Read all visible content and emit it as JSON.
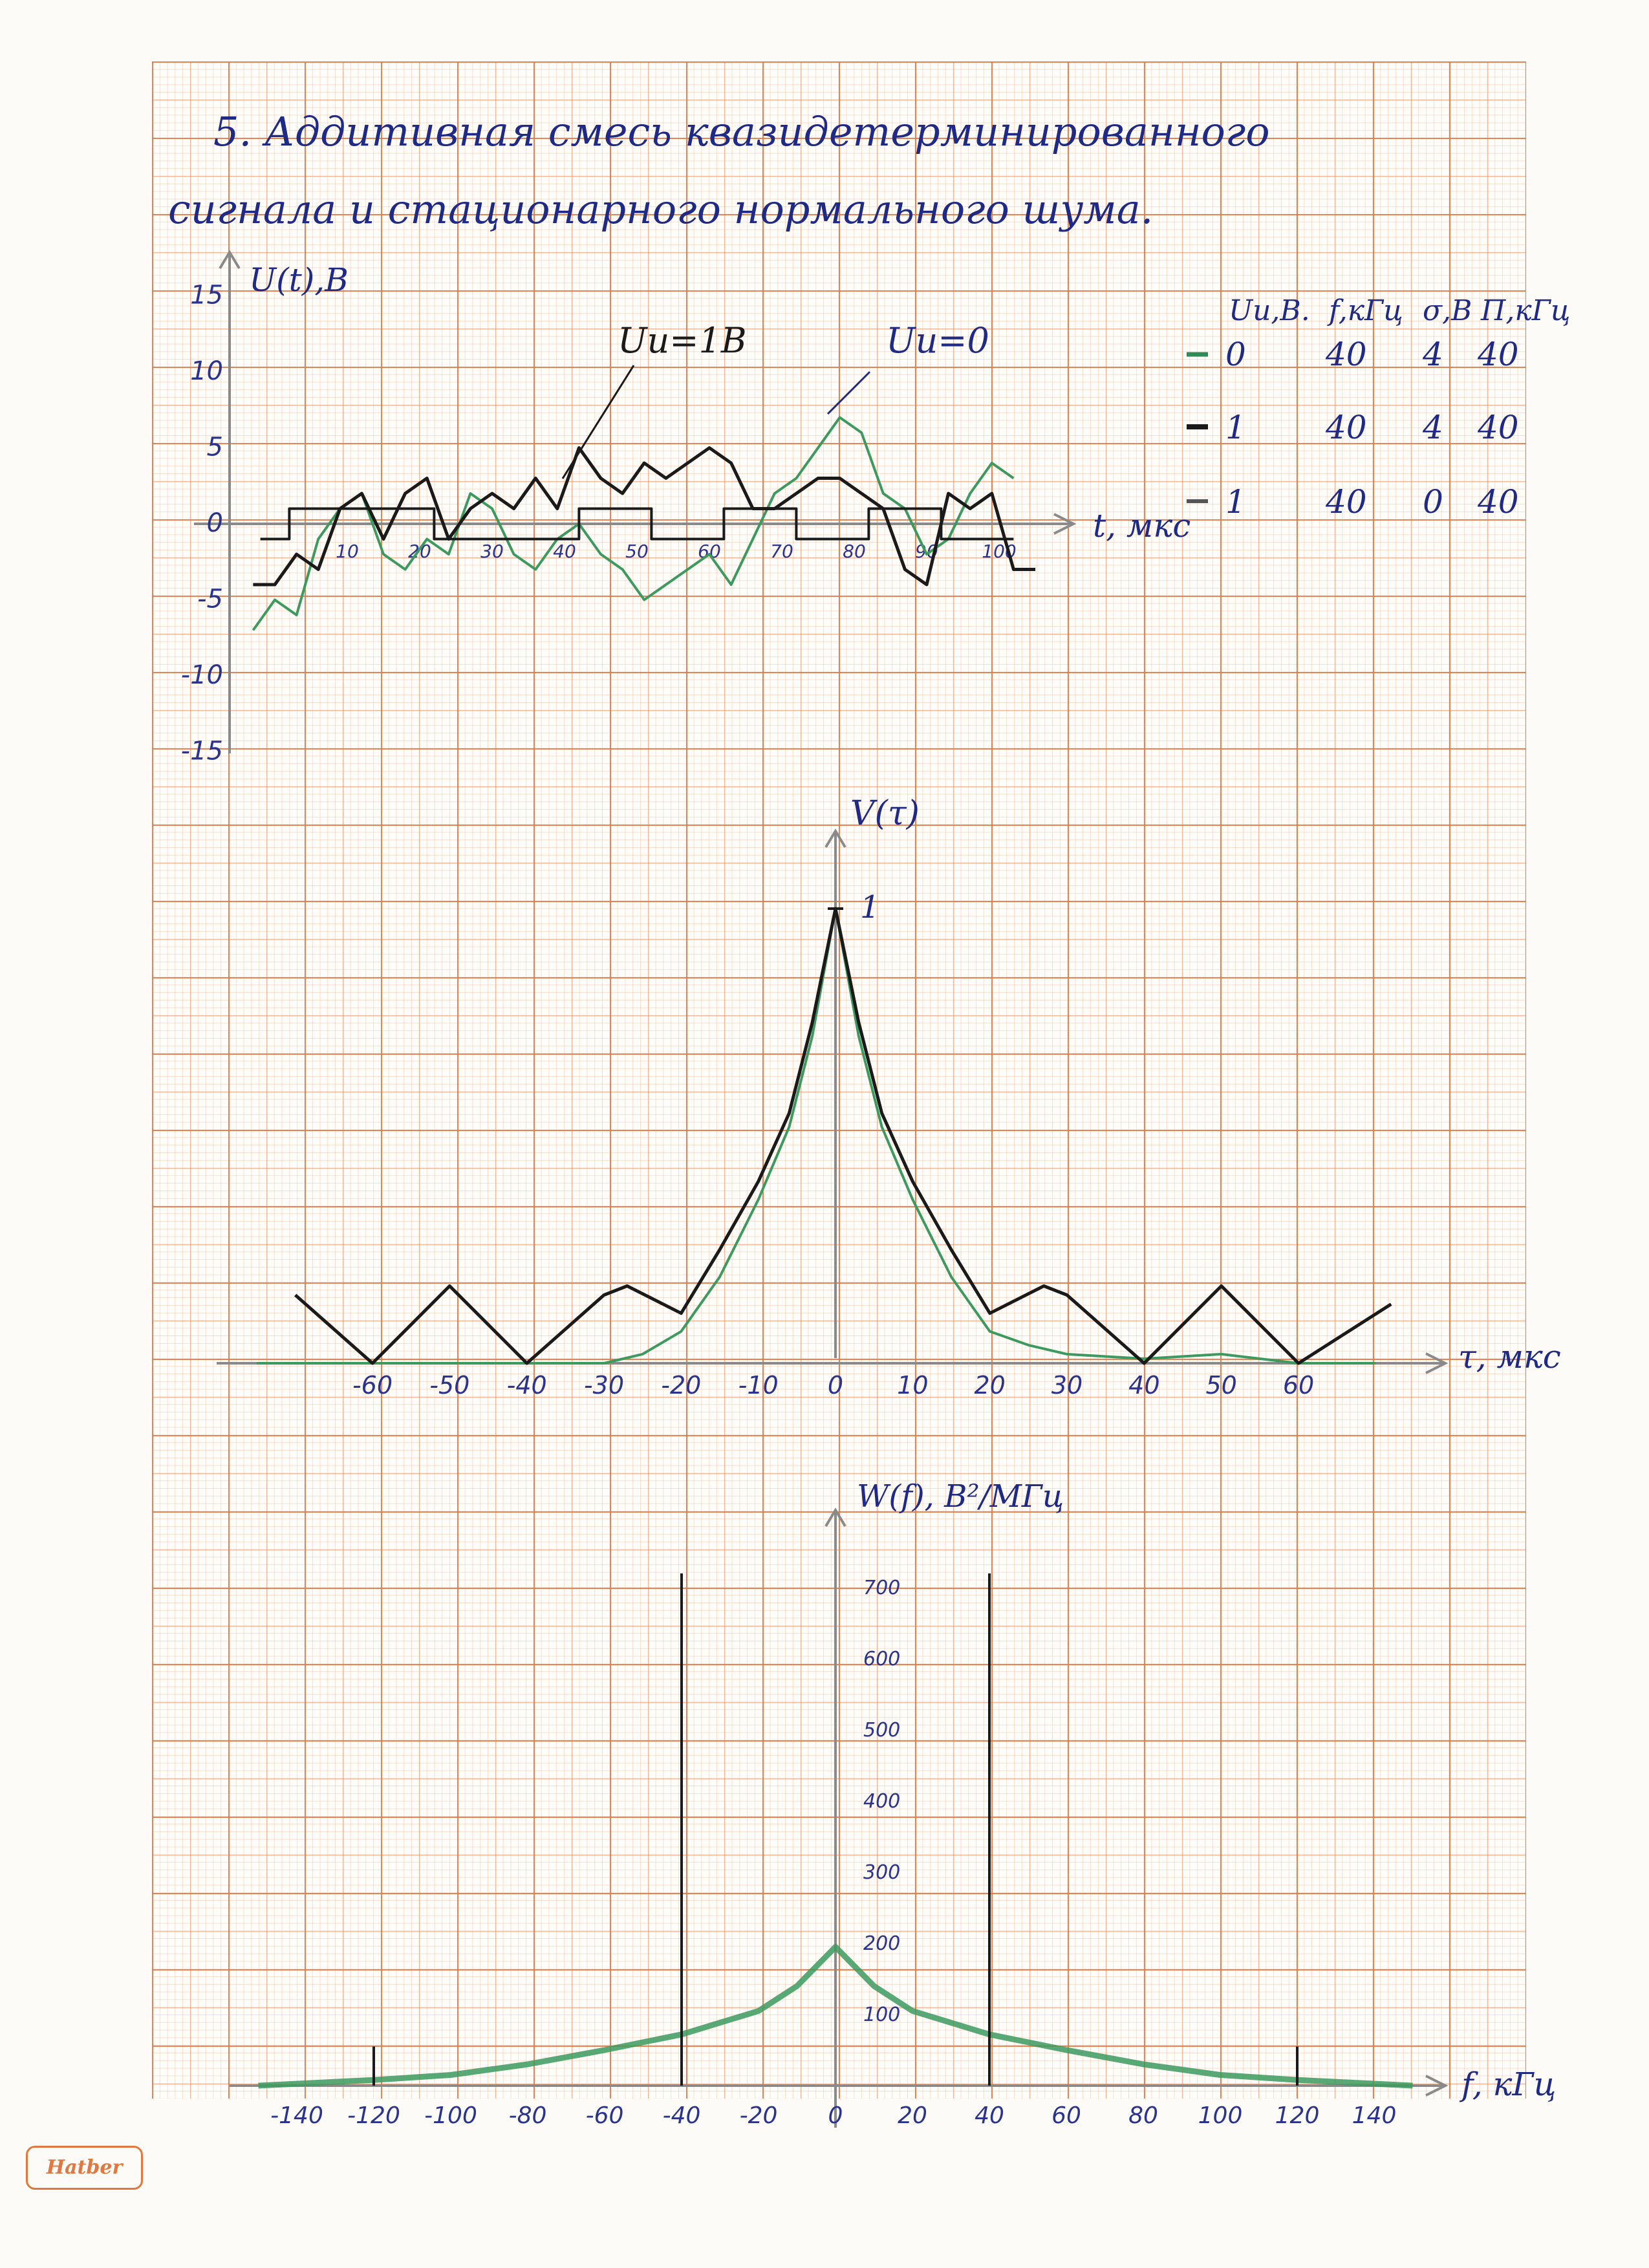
{
  "page": {
    "title_line1": "5. Аддитивная смесь квазидетерминированного",
    "title_line2": "сигнала и стационарного нормального шума.",
    "brand": "Hatber"
  },
  "legend": {
    "header": [
      "Uи,В.",
      "f,кГц",
      "σ,В",
      "П,кГц"
    ],
    "rows": [
      {
        "values": [
          "0",
          "40",
          "4",
          "40"
        ],
        "color": "#2e8b57"
      },
      {
        "values": [
          "1",
          "40",
          "4",
          "40"
        ],
        "color": "#1a1a1a"
      },
      {
        "values": [
          "1",
          "40",
          "0",
          "40"
        ],
        "color": "#555555"
      }
    ]
  },
  "chart_data": [
    {
      "type": "line",
      "ylabel": "U(t),В",
      "xlabel": "t, мкс",
      "xlim": [
        -3,
        106
      ],
      "ylim": [
        -15,
        15
      ],
      "yticks": [
        "15",
        "10",
        "5",
        "0",
        "-5",
        "-10",
        "-15"
      ],
      "xticks": [
        "10",
        "20",
        "30",
        "40",
        "50",
        "60",
        "70",
        "80",
        "90",
        "100"
      ],
      "annotations": [
        "Uи=1В",
        "Uи=0"
      ],
      "series": [
        {
          "color": "#1a1a1a",
          "kind": "square wave",
          "x": [
            -2,
            2,
            2,
            22,
            22,
            42,
            42,
            52,
            52,
            62,
            62,
            72,
            72,
            82,
            82,
            92,
            92,
            102
          ],
          "y": [
            -1,
            -1,
            1,
            1,
            -1,
            -1,
            1,
            1,
            -1,
            -1,
            1,
            1,
            -1,
            -1,
            1,
            1,
            -1,
            -1
          ]
        },
        {
          "color": "#1a1a1a",
          "kind": "noisy signal",
          "x": [
            -3,
            0,
            3,
            6,
            9,
            12,
            15,
            18,
            21,
            24,
            27,
            30,
            33,
            36,
            39,
            42,
            45,
            48,
            51,
            54,
            57,
            60,
            63,
            66,
            69,
            72,
            75,
            78,
            81,
            84,
            87,
            90,
            93,
            96,
            99,
            102,
            105
          ],
          "y": [
            -4,
            -4,
            -2,
            -3,
            1,
            2,
            -1,
            2,
            3,
            -1,
            1,
            2,
            1,
            3,
            1,
            5,
            3,
            2,
            4,
            3,
            4,
            5,
            4,
            1,
            1,
            2,
            3,
            3,
            2,
            1,
            -3,
            -4,
            2,
            1,
            2,
            -3,
            -3
          ]
        },
        {
          "color": "#3c9a5f",
          "kind": "noise",
          "x": [
            -3,
            0,
            3,
            6,
            9,
            12,
            15,
            18,
            21,
            24,
            27,
            30,
            33,
            36,
            39,
            42,
            45,
            48,
            51,
            54,
            57,
            60,
            63,
            66,
            69,
            72,
            75,
            78,
            81,
            84,
            87,
            90,
            93,
            96,
            99,
            102
          ],
          "y": [
            -7,
            -5,
            -6,
            -1,
            1,
            2,
            -2,
            -3,
            -1,
            -2,
            2,
            1,
            -2,
            -3,
            -1,
            0,
            -2,
            -3,
            -5,
            -4,
            -3,
            -2,
            -4,
            -1,
            2,
            3,
            5,
            7,
            6,
            2,
            1,
            -2,
            -1,
            2,
            4,
            3
          ]
        }
      ]
    },
    {
      "type": "line",
      "ylabel": "V(τ)",
      "xlabel": "τ, мкс",
      "xlim": [
        -80,
        80
      ],
      "ylim": [
        0,
        1
      ],
      "xticks": [
        "-60",
        "-50",
        "-40",
        "-30",
        "-20",
        "-10",
        "0",
        "10",
        "20",
        "30",
        "40",
        "50",
        "60"
      ],
      "yticks": [
        "1"
      ],
      "series": [
        {
          "color": "#1a1a1a",
          "x": [
            -70,
            -60,
            -50,
            -40,
            -30,
            -27,
            -20,
            -15,
            -10,
            -6,
            -3,
            0,
            3,
            6,
            10,
            15,
            20,
            27,
            30,
            40,
            50,
            60,
            72
          ],
          "y": [
            0.15,
            0.0,
            0.17,
            0.0,
            0.15,
            0.17,
            0.11,
            0.25,
            0.4,
            0.55,
            0.75,
            1.0,
            0.75,
            0.55,
            0.4,
            0.25,
            0.11,
            0.17,
            0.15,
            0.0,
            0.17,
            0.0,
            0.13
          ]
        },
        {
          "color": "#3c9a5f",
          "x": [
            -75,
            -30,
            -25,
            -20,
            -15,
            -10,
            -6,
            -3,
            0,
            3,
            6,
            10,
            15,
            20,
            25,
            30,
            40,
            50,
            60,
            70
          ],
          "y": [
            0.0,
            0.0,
            0.02,
            0.07,
            0.19,
            0.36,
            0.52,
            0.72,
            1.0,
            0.72,
            0.52,
            0.36,
            0.19,
            0.07,
            0.04,
            0.02,
            0.01,
            0.02,
            0.0,
            0.0
          ]
        }
      ]
    },
    {
      "type": "line",
      "ylabel": "W(f), В²/МГц",
      "xlabel": "f, кГц",
      "xlim": [
        -160,
        160
      ],
      "ylim": [
        0,
        800
      ],
      "xticks": [
        "-140",
        "-120",
        "-100",
        "-80",
        "-60",
        "-40",
        "-20",
        "0",
        "20",
        "40",
        "60",
        "80",
        "100",
        "120",
        "140"
      ],
      "yticks": [
        "700",
        "600",
        "500",
        "400",
        "300",
        "200",
        "100"
      ],
      "series": [
        {
          "color": "#1a1a1a",
          "kind": "spectral lines",
          "x": [
            -120,
            -40,
            40,
            120
          ],
          "y": [
            55,
            720,
            720,
            55
          ]
        },
        {
          "color": "#3c9a5f",
          "kind": "continuous spectrum",
          "x": [
            -150,
            -120,
            -100,
            -80,
            -60,
            -40,
            -20,
            -10,
            0,
            10,
            20,
            40,
            60,
            80,
            100,
            120,
            150
          ],
          "y": [
            0,
            8,
            15,
            30,
            50,
            72,
            105,
            140,
            195,
            140,
            105,
            72,
            50,
            30,
            15,
            8,
            0
          ]
        }
      ]
    }
  ]
}
